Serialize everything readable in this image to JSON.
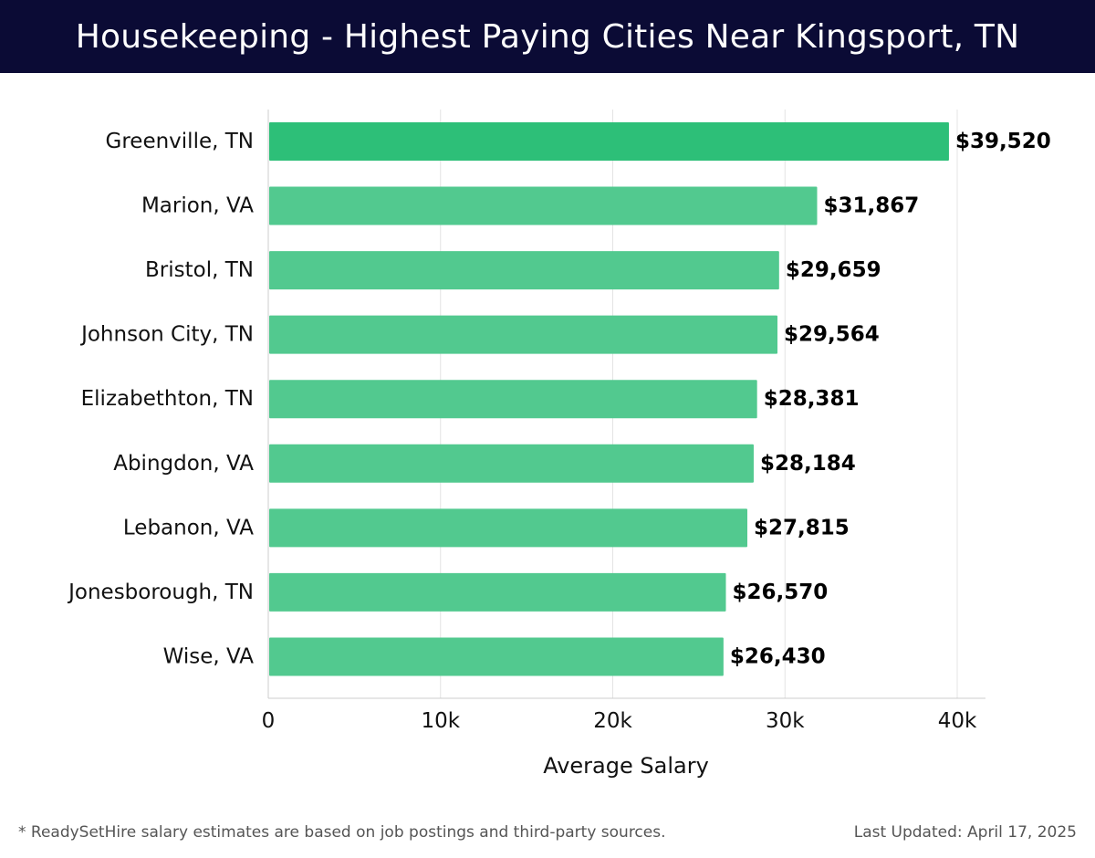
{
  "header": {
    "title": "Housekeeping - Highest Paying Cities Near Kingsport, TN"
  },
  "chart_data": {
    "type": "bar",
    "orientation": "horizontal",
    "title": "Housekeeping - Highest Paying Cities Near Kingsport, TN",
    "xlabel": "Average Salary",
    "ylabel": "",
    "xlim": [
      0,
      40000
    ],
    "ticks": [
      0,
      10000,
      20000,
      30000,
      40000
    ],
    "tick_labels": [
      "0",
      "10k",
      "20k",
      "30k",
      "40k"
    ],
    "grid": true,
    "categories": [
      "Greenville, TN",
      "Marion, VA",
      "Bristol, TN",
      "Johnson City, TN",
      "Elizabethton, TN",
      "Abingdon, VA",
      "Lebanon, VA",
      "Jonesborough, TN",
      "Wise, VA"
    ],
    "values": [
      39520,
      31867,
      29659,
      29564,
      28381,
      28184,
      27815,
      26570,
      26430
    ],
    "value_labels": [
      "$39,520",
      "$31,867",
      "$29,659",
      "$29,564",
      "$28,381",
      "$28,184",
      "$27,815",
      "$26,570",
      "$26,430"
    ],
    "colors": {
      "top_bar": "#2dbf78",
      "bars": "#52c98f",
      "grid": "#e4e4e4",
      "axis": "#cccccc",
      "label": "#111111"
    }
  },
  "footer": {
    "note": "* ReadySetHire salary estimates are based on job postings and third-party sources.",
    "updated": "Last Updated: April 17, 2025"
  }
}
